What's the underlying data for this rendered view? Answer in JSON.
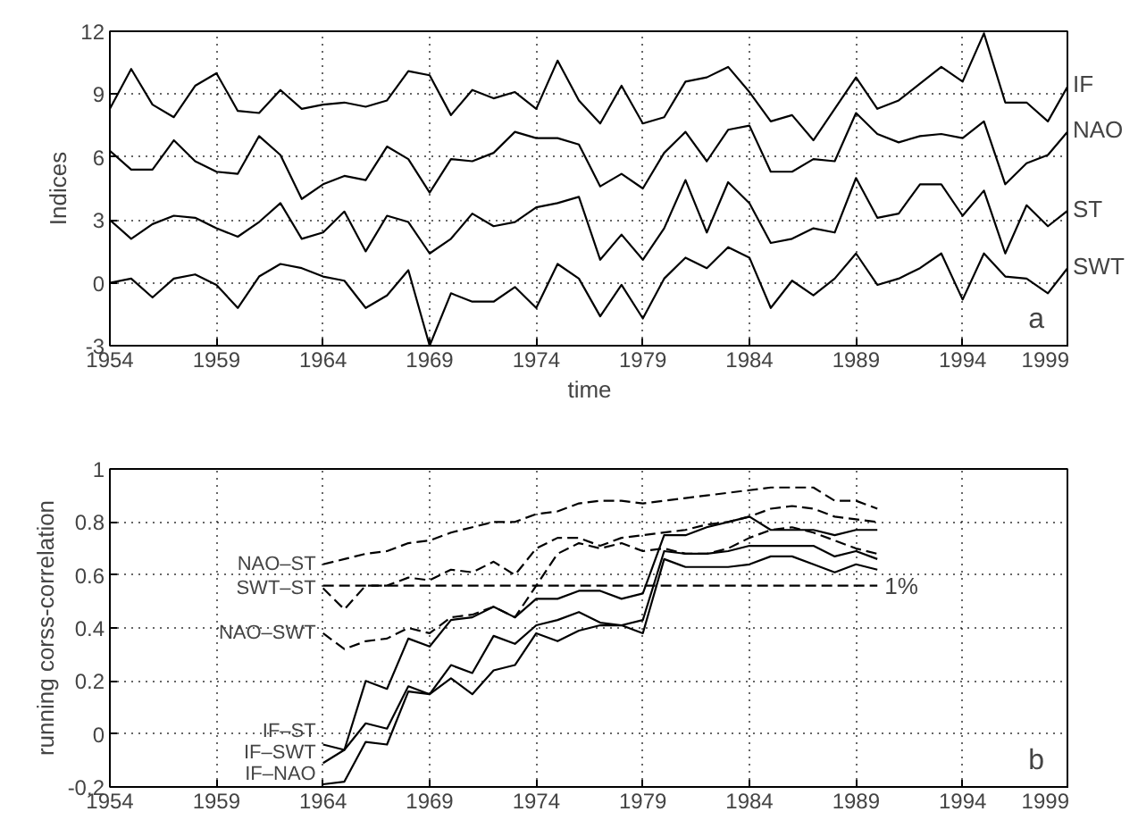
{
  "chart_data": [
    {
      "type": "line",
      "xlabel": "time",
      "ylabel": "Indices",
      "annotations": [
        "a"
      ],
      "grid": true,
      "xlim": [
        1954,
        1999
      ],
      "ylim": [
        -3,
        12
      ],
      "xticks": [
        1954,
        1959,
        1964,
        1969,
        1974,
        1979,
        1984,
        1989,
        1994,
        1999
      ],
      "yticks": [
        -3,
        0,
        3,
        6,
        9,
        12
      ],
      "x": [
        1954,
        1955,
        1956,
        1957,
        1958,
        1959,
        1960,
        1961,
        1962,
        1963,
        1964,
        1965,
        1966,
        1967,
        1968,
        1969,
        1970,
        1971,
        1972,
        1973,
        1974,
        1975,
        1976,
        1977,
        1978,
        1979,
        1980,
        1981,
        1982,
        1983,
        1984,
        1985,
        1986,
        1987,
        1988,
        1989,
        1990,
        1991,
        1992,
        1993,
        1994,
        1995,
        1996,
        1997,
        1998,
        1999
      ],
      "series": [
        {
          "name": "IF",
          "color": "#000000",
          "line_style": "solid",
          "values": [
            8.3,
            10.2,
            8.5,
            7.9,
            9.4,
            10.0,
            8.2,
            8.1,
            9.2,
            8.3,
            8.5,
            8.6,
            8.4,
            8.7,
            10.1,
            9.9,
            8.0,
            9.2,
            8.8,
            9.1,
            8.3,
            10.6,
            8.7,
            7.6,
            9.4,
            7.6,
            7.9,
            9.6,
            9.8,
            10.3,
            9.1,
            7.7,
            8.0,
            6.8,
            8.3,
            9.8,
            8.3,
            8.7,
            9.5,
            10.3,
            9.6,
            11.9,
            8.6,
            8.6,
            7.7,
            9.5
          ]
        },
        {
          "name": "NAO",
          "color": "#000000",
          "line_style": "solid",
          "values": [
            6.3,
            5.4,
            5.4,
            6.8,
            5.8,
            5.3,
            5.2,
            7.0,
            6.1,
            4.0,
            4.7,
            5.1,
            4.9,
            6.5,
            5.9,
            4.3,
            5.9,
            5.8,
            6.2,
            7.2,
            6.9,
            6.9,
            6.6,
            4.6,
            5.2,
            4.5,
            6.2,
            7.2,
            5.8,
            7.3,
            7.5,
            5.3,
            5.3,
            5.9,
            5.8,
            8.1,
            7.1,
            6.7,
            7.0,
            7.1,
            6.9,
            7.7,
            4.7,
            5.7,
            6.1,
            7.3
          ]
        },
        {
          "name": "ST",
          "color": "#000000",
          "line_style": "solid",
          "values": [
            3.0,
            2.1,
            2.8,
            3.2,
            3.1,
            2.6,
            2.2,
            2.9,
            3.8,
            2.1,
            2.4,
            3.4,
            1.5,
            3.2,
            2.9,
            1.4,
            2.1,
            3.3,
            2.7,
            2.9,
            3.6,
            3.8,
            4.1,
            1.1,
            2.3,
            1.1,
            2.6,
            4.9,
            2.4,
            4.8,
            3.8,
            1.9,
            2.1,
            2.6,
            2.4,
            5.0,
            3.1,
            3.3,
            4.7,
            4.7,
            3.2,
            4.4,
            1.4,
            3.7,
            2.7,
            3.5
          ]
        },
        {
          "name": "SWT",
          "color": "#000000",
          "line_style": "solid",
          "values": [
            0.0,
            0.2,
            -0.7,
            0.2,
            0.4,
            -0.1,
            -1.2,
            0.3,
            0.9,
            0.7,
            0.3,
            0.1,
            -1.2,
            -0.6,
            0.6,
            -3.0,
            -0.5,
            -0.9,
            -0.9,
            -0.2,
            -1.2,
            0.9,
            0.2,
            -1.6,
            -0.1,
            -1.7,
            0.2,
            1.2,
            0.7,
            1.7,
            1.2,
            -1.2,
            0.1,
            -0.6,
            0.2,
            1.4,
            -0.1,
            0.2,
            0.7,
            1.4,
            -0.8,
            1.4,
            0.3,
            0.2,
            -0.5,
            0.8
          ]
        }
      ]
    },
    {
      "type": "line",
      "ylabel": "running corss-correlation",
      "annotations": [
        "b"
      ],
      "grid": true,
      "xlim": [
        1954,
        1999
      ],
      "ylim": [
        -0.2,
        1
      ],
      "xticks": [
        1954,
        1959,
        1964,
        1969,
        1974,
        1979,
        1984,
        1989,
        1994,
        1999
      ],
      "yticks": [
        -0.2,
        0,
        0.2,
        0.4,
        0.6,
        0.8,
        1
      ],
      "series": [
        {
          "name": "NAO–ST",
          "color": "#000000",
          "line_style": "dashed",
          "x": [
            1964,
            1965,
            1966,
            1967,
            1968,
            1969,
            1970,
            1971,
            1972,
            1973,
            1974,
            1975,
            1976,
            1977,
            1978,
            1979,
            1980,
            1981,
            1982,
            1983,
            1984,
            1985,
            1986,
            1987,
            1988,
            1989,
            1990
          ],
          "values": [
            0.64,
            0.66,
            0.68,
            0.69,
            0.72,
            0.73,
            0.76,
            0.78,
            0.8,
            0.8,
            0.83,
            0.84,
            0.87,
            0.88,
            0.88,
            0.87,
            0.88,
            0.89,
            0.9,
            0.91,
            0.92,
            0.93,
            0.93,
            0.93,
            0.88,
            0.88,
            0.85
          ]
        },
        {
          "name": "SWT–ST",
          "color": "#000000",
          "line_style": "dashed",
          "x": [
            1964,
            1965,
            1966,
            1967,
            1968,
            1969,
            1970,
            1971,
            1972,
            1973,
            1974,
            1975,
            1976,
            1977,
            1978,
            1979,
            1980,
            1981,
            1982,
            1983,
            1984,
            1985,
            1986,
            1987,
            1988,
            1989,
            1990
          ],
          "values": [
            0.55,
            0.47,
            0.56,
            0.56,
            0.59,
            0.58,
            0.62,
            0.61,
            0.65,
            0.6,
            0.7,
            0.74,
            0.74,
            0.71,
            0.74,
            0.75,
            0.76,
            0.77,
            0.79,
            0.8,
            0.82,
            0.85,
            0.86,
            0.85,
            0.82,
            0.81,
            0.8
          ]
        },
        {
          "name": "NAO–SWT",
          "color": "#000000",
          "line_style": "dashed",
          "x": [
            1964,
            1965,
            1966,
            1967,
            1968,
            1969,
            1970,
            1971,
            1972,
            1973,
            1974,
            1975,
            1976,
            1977,
            1978,
            1979,
            1980,
            1981,
            1982,
            1983,
            1984,
            1985,
            1986,
            1987,
            1988,
            1989,
            1990
          ],
          "values": [
            0.38,
            0.32,
            0.35,
            0.36,
            0.4,
            0.38,
            0.44,
            0.45,
            0.48,
            0.44,
            0.56,
            0.68,
            0.72,
            0.7,
            0.72,
            0.69,
            0.7,
            0.68,
            0.68,
            0.7,
            0.74,
            0.77,
            0.78,
            0.76,
            0.73,
            0.7,
            0.68
          ]
        },
        {
          "name": "IF–ST",
          "color": "#000000",
          "line_style": "solid",
          "x": [
            1964,
            1965,
            1966,
            1967,
            1968,
            1969,
            1970,
            1971,
            1972,
            1973,
            1974,
            1975,
            1976,
            1977,
            1978,
            1979,
            1980,
            1981,
            1982,
            1983,
            1984,
            1985,
            1986,
            1987,
            1988,
            1989,
            1990
          ],
          "values": [
            -0.04,
            -0.06,
            0.2,
            0.17,
            0.36,
            0.33,
            0.43,
            0.44,
            0.48,
            0.44,
            0.51,
            0.51,
            0.54,
            0.54,
            0.51,
            0.53,
            0.75,
            0.75,
            0.78,
            0.8,
            0.82,
            0.77,
            0.77,
            0.77,
            0.75,
            0.77,
            0.77
          ]
        },
        {
          "name": "IF–SWT",
          "color": "#000000",
          "line_style": "solid",
          "x": [
            1964,
            1965,
            1966,
            1967,
            1968,
            1969,
            1970,
            1971,
            1972,
            1973,
            1974,
            1975,
            1976,
            1977,
            1978,
            1979,
            1980,
            1981,
            1982,
            1983,
            1984,
            1985,
            1986,
            1987,
            1988,
            1989,
            1990
          ],
          "values": [
            -0.11,
            -0.06,
            0.04,
            0.02,
            0.18,
            0.15,
            0.26,
            0.23,
            0.37,
            0.34,
            0.41,
            0.43,
            0.46,
            0.42,
            0.41,
            0.43,
            0.69,
            0.68,
            0.68,
            0.69,
            0.71,
            0.71,
            0.71,
            0.71,
            0.67,
            0.69,
            0.66
          ]
        },
        {
          "name": "IF–NAO",
          "color": "#000000",
          "line_style": "solid",
          "x": [
            1964,
            1965,
            1966,
            1967,
            1968,
            1969,
            1970,
            1971,
            1972,
            1973,
            1974,
            1975,
            1976,
            1977,
            1978,
            1979,
            1980,
            1981,
            1982,
            1983,
            1984,
            1985,
            1986,
            1987,
            1988,
            1989,
            1990
          ],
          "values": [
            -0.19,
            -0.18,
            -0.03,
            -0.04,
            0.16,
            0.15,
            0.21,
            0.15,
            0.24,
            0.26,
            0.38,
            0.35,
            0.39,
            0.41,
            0.41,
            0.38,
            0.66,
            0.63,
            0.63,
            0.63,
            0.64,
            0.67,
            0.67,
            0.64,
            0.61,
            0.64,
            0.62
          ]
        },
        {
          "name": "1%",
          "color": "#000000",
          "line_style": "dashed",
          "x": [
            1964,
            1990
          ],
          "values": [
            0.56,
            0.56
          ]
        }
      ]
    }
  ]
}
